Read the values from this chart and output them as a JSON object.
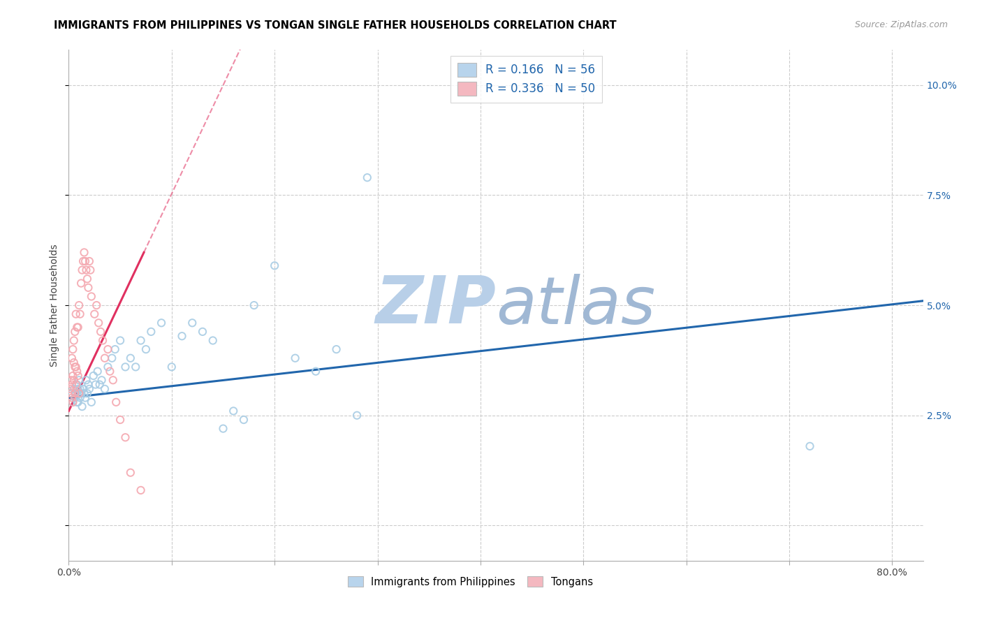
{
  "title": "IMMIGRANTS FROM PHILIPPINES VS TONGAN SINGLE FATHER HOUSEHOLDS CORRELATION CHART",
  "source": "Source: ZipAtlas.com",
  "ylabel": "Single Father Households",
  "xlim": [
    0.0,
    0.83
  ],
  "ylim": [
    -0.008,
    0.108
  ],
  "legend_r1": "0.166",
  "legend_n1": "56",
  "legend_r2": "0.336",
  "legend_n2": "50",
  "color_blue": "#a8cce4",
  "color_pink": "#f4a8b0",
  "color_trend_blue": "#2166ac",
  "color_trend_pink": "#e03060",
  "color_watermark": "#c8d8ec",
  "watermark_text": "ZIPatlas",
  "phil_trend_x": [
    0.0,
    0.83
  ],
  "phil_trend_y": [
    0.029,
    0.051
  ],
  "tong_trend_x": [
    0.0,
    0.073
  ],
  "tong_trend_y": [
    0.026,
    0.062
  ],
  "phil_x": [
    0.003,
    0.004,
    0.005,
    0.006,
    0.007,
    0.008,
    0.008,
    0.009,
    0.009,
    0.01,
    0.01,
    0.011,
    0.011,
    0.012,
    0.013,
    0.014,
    0.015,
    0.016,
    0.017,
    0.018,
    0.019,
    0.02,
    0.022,
    0.024,
    0.026,
    0.028,
    0.03,
    0.032,
    0.035,
    0.038,
    0.042,
    0.045,
    0.05,
    0.055,
    0.06,
    0.065,
    0.07,
    0.075,
    0.08,
    0.09,
    0.1,
    0.11,
    0.12,
    0.13,
    0.14,
    0.15,
    0.16,
    0.17,
    0.18,
    0.2,
    0.22,
    0.24,
    0.26,
    0.28,
    0.29,
    0.72
  ],
  "phil_y": [
    0.03,
    0.028,
    0.031,
    0.029,
    0.03,
    0.028,
    0.032,
    0.031,
    0.028,
    0.03,
    0.033,
    0.029,
    0.031,
    0.03,
    0.027,
    0.031,
    0.03,
    0.029,
    0.033,
    0.03,
    0.032,
    0.031,
    0.028,
    0.034,
    0.032,
    0.035,
    0.032,
    0.033,
    0.031,
    0.036,
    0.038,
    0.04,
    0.042,
    0.036,
    0.038,
    0.036,
    0.042,
    0.04,
    0.044,
    0.046,
    0.036,
    0.043,
    0.046,
    0.044,
    0.042,
    0.022,
    0.026,
    0.024,
    0.05,
    0.059,
    0.038,
    0.035,
    0.04,
    0.025,
    0.079,
    0.018
  ],
  "tong_x": [
    0.001,
    0.002,
    0.002,
    0.003,
    0.003,
    0.003,
    0.004,
    0.004,
    0.004,
    0.005,
    0.005,
    0.005,
    0.006,
    0.006,
    0.006,
    0.007,
    0.007,
    0.007,
    0.008,
    0.008,
    0.009,
    0.009,
    0.01,
    0.01,
    0.011,
    0.012,
    0.013,
    0.014,
    0.015,
    0.016,
    0.017,
    0.018,
    0.019,
    0.02,
    0.021,
    0.022,
    0.025,
    0.027,
    0.029,
    0.031,
    0.033,
    0.035,
    0.038,
    0.04,
    0.043,
    0.046,
    0.05,
    0.055,
    0.06,
    0.07
  ],
  "tong_y": [
    0.031,
    0.03,
    0.033,
    0.032,
    0.029,
    0.038,
    0.028,
    0.034,
    0.04,
    0.033,
    0.037,
    0.042,
    0.03,
    0.036,
    0.044,
    0.032,
    0.036,
    0.048,
    0.035,
    0.045,
    0.034,
    0.045,
    0.03,
    0.05,
    0.048,
    0.055,
    0.058,
    0.06,
    0.062,
    0.06,
    0.058,
    0.056,
    0.054,
    0.06,
    0.058,
    0.052,
    0.048,
    0.05,
    0.046,
    0.044,
    0.042,
    0.038,
    0.04,
    0.035,
    0.033,
    0.028,
    0.024,
    0.02,
    0.012,
    0.008
  ]
}
